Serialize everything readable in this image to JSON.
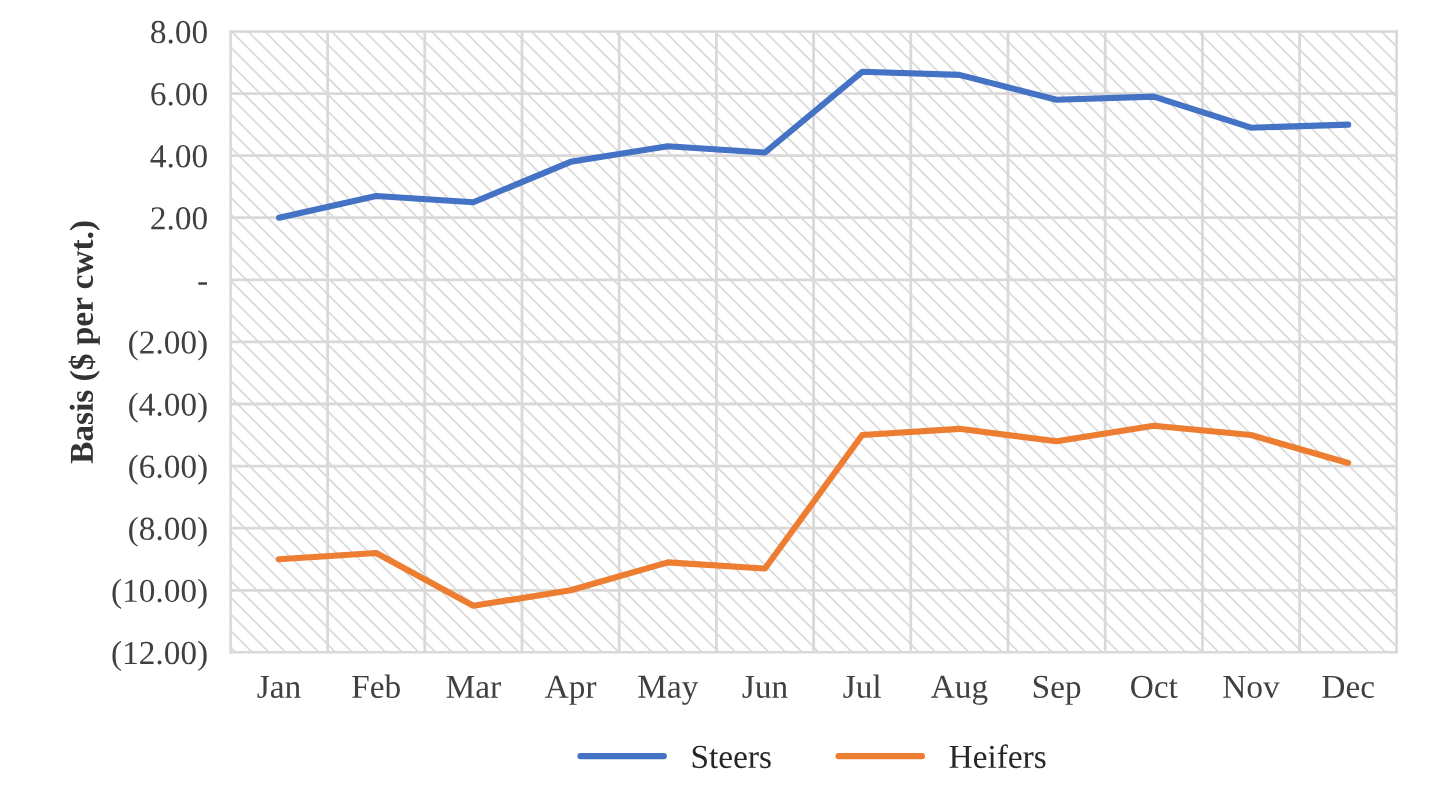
{
  "chart_data": {
    "type": "line",
    "ylabel": "Basis ($ per cwt.)",
    "categories": [
      "Jan",
      "Feb",
      "Mar",
      "Apr",
      "May",
      "Jun",
      "Jul",
      "Aug",
      "Sep",
      "Oct",
      "Nov",
      "Dec"
    ],
    "series": [
      {
        "name": "Steers",
        "color": "#4472c4",
        "values": [
          2.0,
          2.7,
          2.5,
          3.8,
          4.3,
          4.1,
          6.7,
          6.6,
          5.8,
          5.9,
          4.9,
          5.0
        ]
      },
      {
        "name": "Heifers",
        "color": "#ed7d31",
        "values": [
          -9.0,
          -8.8,
          -10.5,
          -10.0,
          -9.1,
          -9.3,
          -5.0,
          -4.8,
          -5.2,
          -4.7,
          -5.0,
          -5.9
        ]
      }
    ],
    "ylim": [
      -12,
      8
    ],
    "yticks": [
      {
        "value": -12,
        "label": "(12.00)"
      },
      {
        "value": -10,
        "label": "(10.00)"
      },
      {
        "value": -8,
        "label": "(8.00)"
      },
      {
        "value": -6,
        "label": "(6.00)"
      },
      {
        "value": -4,
        "label": "(4.00)"
      },
      {
        "value": -2,
        "label": "(2.00)"
      },
      {
        "value": 0,
        "label": "-"
      },
      {
        "value": 2,
        "label": "2.00"
      },
      {
        "value": 4,
        "label": "4.00"
      },
      {
        "value": 6,
        "label": "6.00"
      },
      {
        "value": 8,
        "label": "8.00"
      }
    ],
    "grid": true,
    "legend": "bottom",
    "marker": "none",
    "line_style": "solid"
  }
}
